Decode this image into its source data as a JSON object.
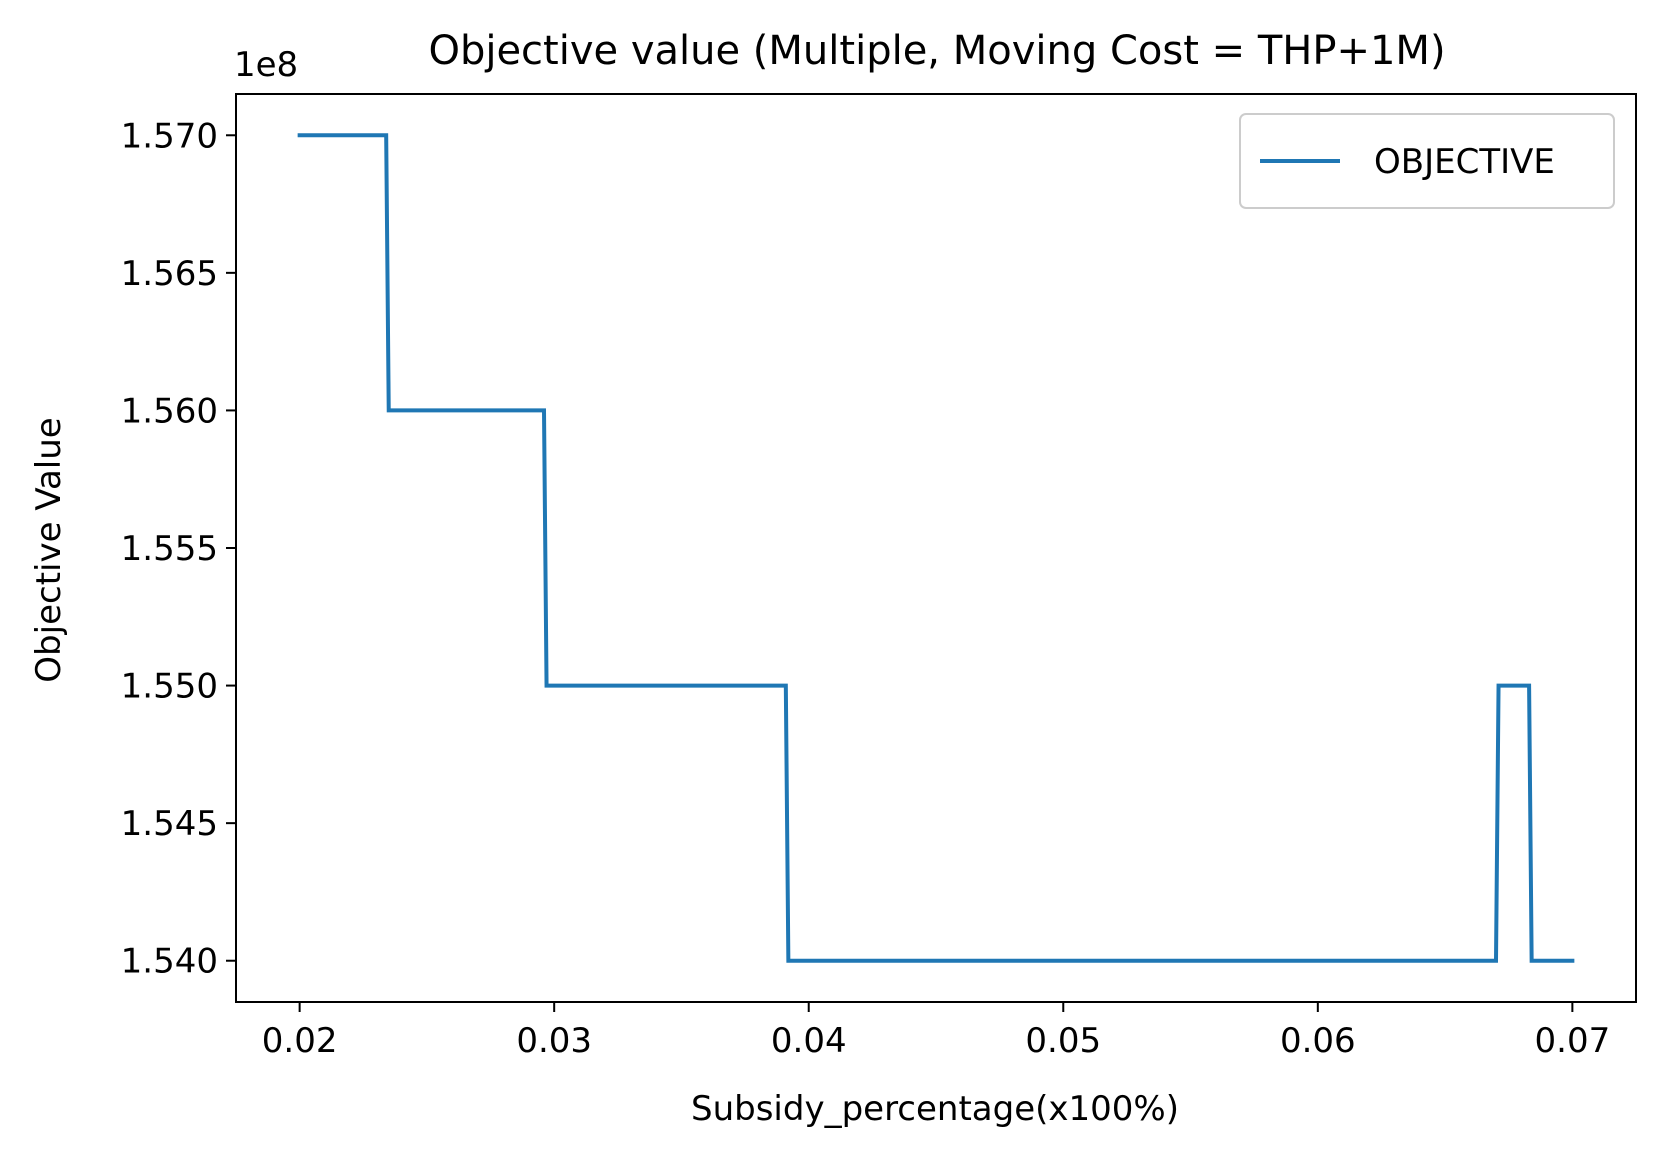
{
  "chart_data": {
    "type": "line",
    "title": "Objective value (Multiple, Moving Cost = THP+1M)",
    "xlabel": "Subsidy_percentage(x100%)",
    "ylabel": "Objective Value",
    "y_offset_label": "1e8",
    "xlim": [
      0.0175,
      0.0725
    ],
    "ylim": [
      1.5385,
      1.5715
    ],
    "x_ticks": [
      0.02,
      0.03,
      0.04,
      0.05,
      0.06,
      0.07
    ],
    "x_tick_labels": [
      "0.02",
      "0.03",
      "0.04",
      "0.05",
      "0.06",
      "0.07"
    ],
    "y_ticks": [
      1.54,
      1.545,
      1.55,
      1.555,
      1.56,
      1.565,
      1.57
    ],
    "y_tick_labels": [
      "1.540",
      "1.545",
      "1.550",
      "1.555",
      "1.560",
      "1.565",
      "1.570"
    ],
    "grid": false,
    "legend_position": "top-right",
    "series": [
      {
        "name": "OBJECTIVE",
        "color": "#1f77b4",
        "x": [
          0.02,
          0.0234,
          0.0235,
          0.0296,
          0.0297,
          0.0391,
          0.0392,
          0.067,
          0.0671,
          0.0683,
          0.0684,
          0.07
        ],
        "y": [
          1.57,
          1.57,
          1.56,
          1.56,
          1.55,
          1.55,
          1.54,
          1.54,
          1.55,
          1.55,
          1.54,
          1.54
        ]
      }
    ]
  }
}
